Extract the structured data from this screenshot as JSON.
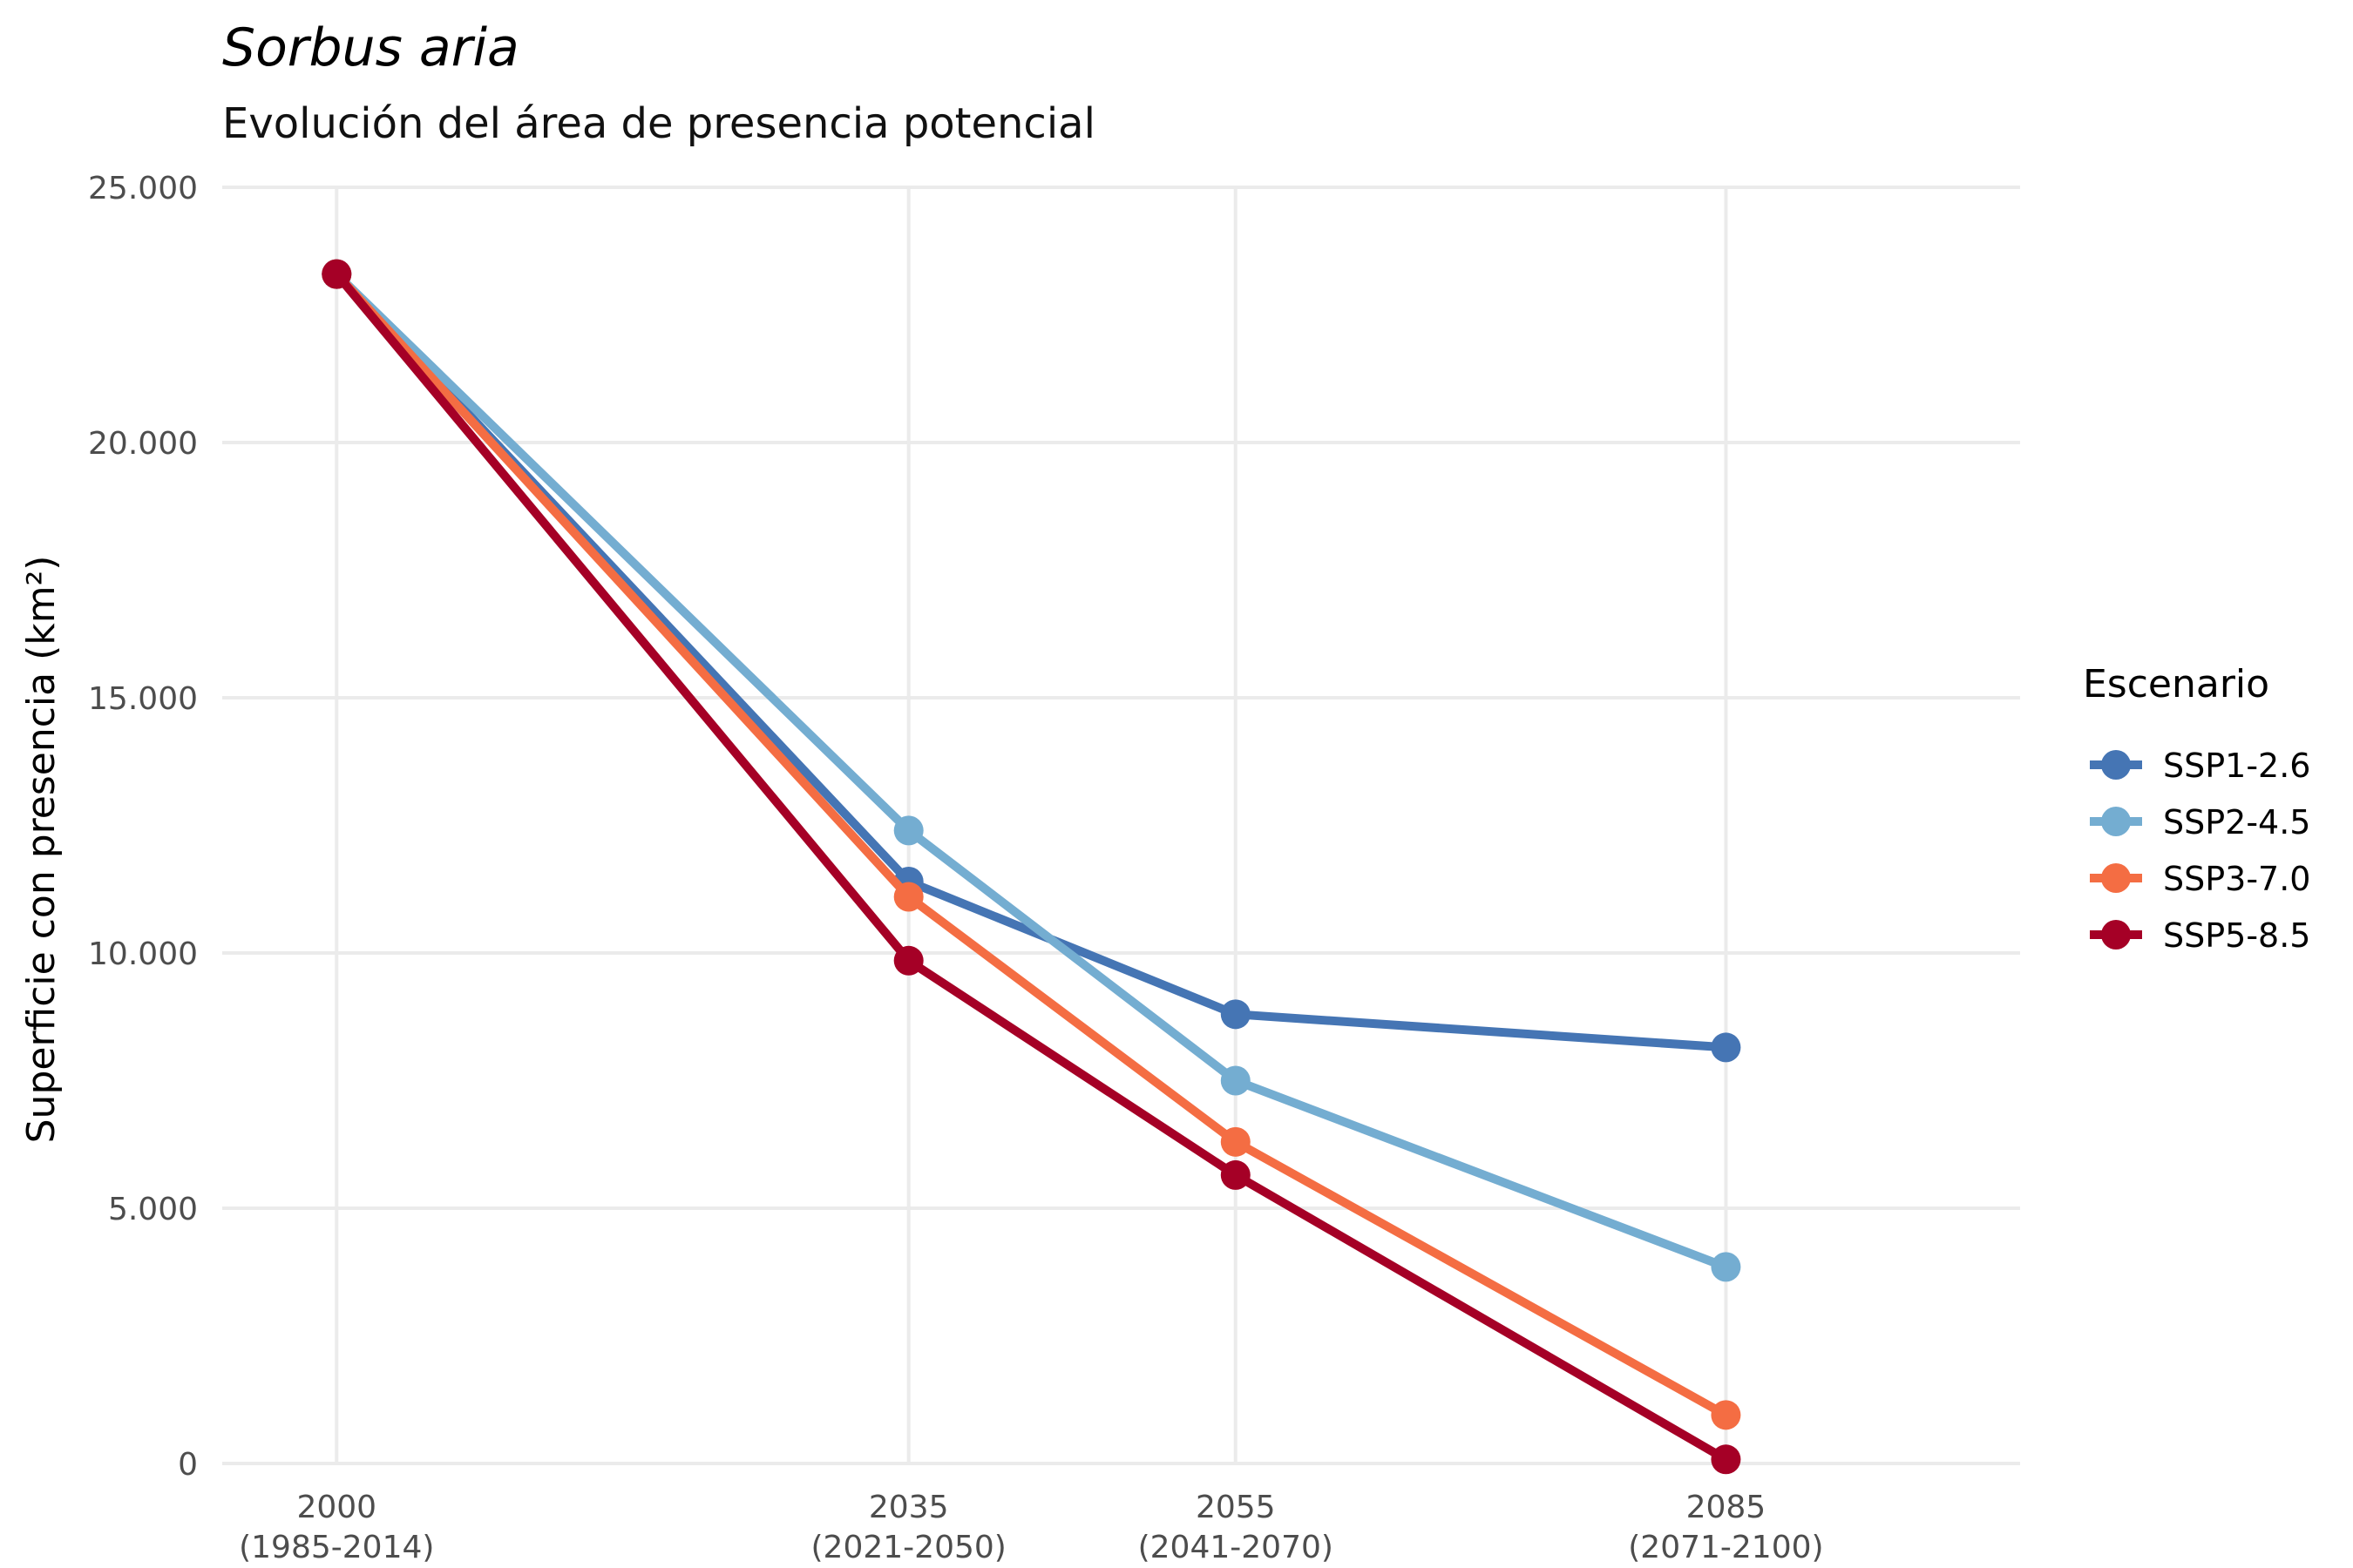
{
  "chart_data": {
    "type": "line",
    "title": "Sorbus aria",
    "subtitle": "Evolución del área de presencia potencial",
    "xlabel": "",
    "ylabel": "Superficie con presencia (km²)",
    "x": [
      2000,
      2035,
      2055,
      2085
    ],
    "x_tick_labels": [
      [
        "2000",
        "(1985-2014)"
      ],
      [
        "2035",
        "(2021-2050)"
      ],
      [
        "2055",
        "(2041-2070)"
      ],
      [
        "2085",
        "(2071-2100)"
      ]
    ],
    "y_ticks": [
      0,
      5000,
      10000,
      15000,
      20000,
      25000
    ],
    "y_tick_labels": [
      "0",
      "5.000",
      "10.000",
      "15.000",
      "20.000",
      "25.000"
    ],
    "ylim": [
      0,
      25000
    ],
    "grid": true,
    "legend": {
      "title": "Escenario",
      "position": "right"
    },
    "series": [
      {
        "name": "SSP1-2.6",
        "color": "#4575b4",
        "values": [
          23300,
          11400,
          8800,
          8150
        ]
      },
      {
        "name": "SSP2-4.5",
        "color": "#74add1",
        "values": [
          23300,
          12400,
          7500,
          3850
        ]
      },
      {
        "name": "SSP3-7.0",
        "color": "#f46d43",
        "values": [
          23300,
          11100,
          6300,
          950
        ]
      },
      {
        "name": "SSP5-8.5",
        "color": "#a50026",
        "values": [
          23300,
          9850,
          5650,
          80
        ]
      }
    ]
  }
}
